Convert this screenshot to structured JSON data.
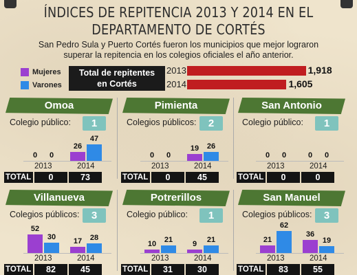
{
  "title_line1": "ÍNDICES DE REPITENCIA 2013 Y 2014 EN EL",
  "title_line2": "DEPARTAMENTO DE CORTÉS",
  "subtitle_line1": "San Pedro Sula y Puerto Cortés fueron los municipios que mejor lograron",
  "subtitle_line2": "superar la repitencia en los colegios oficiales el año anterior.",
  "legend": {
    "mujeres": "Mujeres",
    "varones": "Varones",
    "mujeres_color": "#9b3fd0",
    "varones_color": "#2f8ae6"
  },
  "total_box": {
    "line1": "Total de repitentes",
    "line2": "en Cortés"
  },
  "chart_data": [
    {
      "type": "bar",
      "title": "Total de repitentes en Cortés",
      "categories": [
        "2013",
        "2014"
      ],
      "values": [
        1918,
        1605
      ],
      "value_labels": [
        "1,918",
        "1,605"
      ],
      "bar_color": "#c01d20"
    },
    {
      "type": "bar",
      "title": "Omoa",
      "colegio_label": "Colegio público:",
      "colegios": "1",
      "categories": [
        "2013",
        "2014"
      ],
      "series": [
        {
          "name": "Mujeres",
          "values": [
            0,
            26
          ]
        },
        {
          "name": "Varones",
          "values": [
            0,
            47
          ]
        }
      ],
      "total_label": "TOTAL",
      "totals": [
        "0",
        "73"
      ]
    },
    {
      "type": "bar",
      "title": "Pimienta",
      "colegio_label": "Colegios públicos:",
      "colegios": "2",
      "categories": [
        "2013",
        "2014"
      ],
      "series": [
        {
          "name": "Mujeres",
          "values": [
            0,
            19
          ]
        },
        {
          "name": "Varones",
          "values": [
            0,
            26
          ]
        }
      ],
      "total_label": "TOTAL",
      "totals": [
        "0",
        "45"
      ]
    },
    {
      "type": "bar",
      "title": "San Antonio",
      "colegio_label": "Colegio público:",
      "colegios": "1",
      "categories": [
        "2013",
        "2014"
      ],
      "series": [
        {
          "name": "Mujeres",
          "values": [
            0,
            0
          ]
        },
        {
          "name": "Varones",
          "values": [
            0,
            0
          ]
        }
      ],
      "total_label": "TOTAL",
      "totals": [
        "0",
        "0"
      ]
    },
    {
      "type": "bar",
      "title": "Villanueva",
      "colegio_label": "Colegios públicos:",
      "colegios": "3",
      "categories": [
        "2013",
        "2014"
      ],
      "series": [
        {
          "name": "Mujeres",
          "values": [
            52,
            17
          ]
        },
        {
          "name": "Varones",
          "values": [
            30,
            28
          ]
        }
      ],
      "total_label": "TOTAL",
      "totals": [
        "82",
        "45"
      ]
    },
    {
      "type": "bar",
      "title": "Potrerillos",
      "colegio_label": "Colegio público:",
      "colegios": "1",
      "categories": [
        "2013",
        "2014"
      ],
      "series": [
        {
          "name": "Mujeres",
          "values": [
            10,
            9
          ]
        },
        {
          "name": "Varones",
          "values": [
            21,
            21
          ]
        }
      ],
      "total_label": "TOTAL",
      "totals": [
        "31",
        "30"
      ]
    },
    {
      "type": "bar",
      "title": "San Manuel",
      "colegio_label": "Colegios públicos:",
      "colegios": "3",
      "categories": [
        "2013",
        "2014"
      ],
      "series": [
        {
          "name": "Mujeres",
          "values": [
            21,
            36
          ]
        },
        {
          "name": "Varones",
          "values": [
            62,
            19
          ]
        }
      ],
      "total_label": "TOTAL",
      "totals": [
        "83",
        "55"
      ]
    }
  ]
}
